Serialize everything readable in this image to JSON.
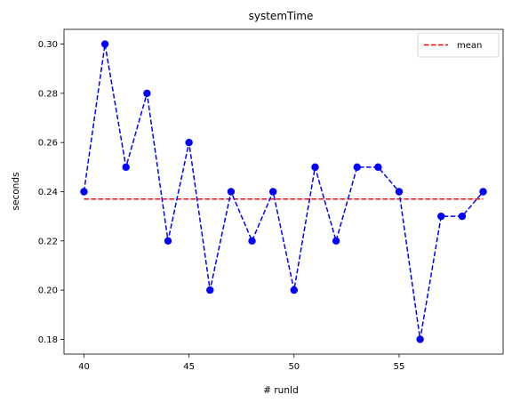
{
  "chart_data": {
    "type": "line",
    "title": "systemTime",
    "xlabel": "# runId",
    "ylabel": "seconds",
    "x": [
      40,
      41,
      42,
      43,
      44,
      45,
      46,
      47,
      48,
      49,
      50,
      51,
      52,
      53,
      54,
      55,
      56,
      57,
      58,
      59
    ],
    "series": [
      {
        "values": [
          0.24,
          0.3,
          0.25,
          0.28,
          0.22,
          0.26,
          0.2,
          0.24,
          0.22,
          0.24,
          0.2,
          0.25,
          0.22,
          0.25,
          0.25,
          0.24,
          0.18,
          0.23,
          0.23,
          0.24
        ],
        "color": "#0000ff",
        "style": "dashed",
        "marker": "circle"
      },
      {
        "name": "mean",
        "values": [
          0.237,
          0.237,
          0.237,
          0.237,
          0.237,
          0.237,
          0.237,
          0.237,
          0.237,
          0.237,
          0.237,
          0.237,
          0.237,
          0.237,
          0.237,
          0.237,
          0.237,
          0.237,
          0.237,
          0.237
        ],
        "color": "#ff0000",
        "style": "dashed",
        "marker": "none"
      }
    ],
    "xlim": [
      39.05,
      59.95
    ],
    "ylim": [
      0.174,
      0.306
    ],
    "xticks": [
      40,
      45,
      50,
      55
    ],
    "xtick_labels": [
      "40",
      "45",
      "50",
      "55"
    ],
    "yticks": [
      0.18,
      0.2,
      0.22,
      0.24,
      0.26,
      0.28,
      0.3
    ],
    "ytick_labels": [
      "0.18",
      "0.20",
      "0.22",
      "0.24",
      "0.26",
      "0.28",
      "0.30"
    ],
    "grid": false,
    "legend": {
      "position": "upper-right",
      "entries": [
        "mean"
      ]
    }
  }
}
